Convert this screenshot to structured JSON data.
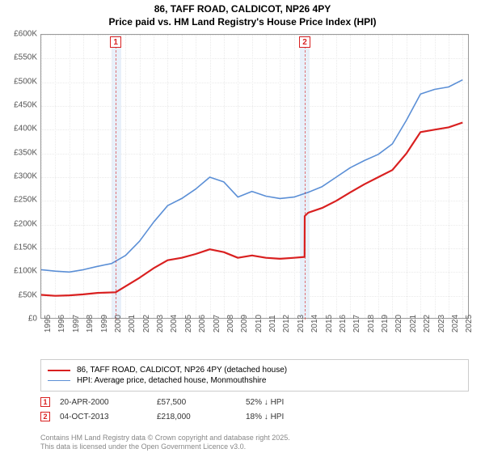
{
  "title_line1": "86, TAFF ROAD, CALDICOT, NP26 4PY",
  "title_line2": "Price paid vs. HM Land Registry's House Price Index (HPI)",
  "chart": {
    "type": "line",
    "xlim": [
      1995,
      2025.5
    ],
    "ylim": [
      0,
      600000
    ],
    "ytick_step": 50000,
    "y_prefix": "£",
    "y_ticks": [
      "£0",
      "£50K",
      "£100K",
      "£150K",
      "£200K",
      "£250K",
      "£300K",
      "£350K",
      "£400K",
      "£450K",
      "£500K",
      "£550K",
      "£600K"
    ],
    "x_ticks": [
      1995,
      1996,
      1997,
      1998,
      1999,
      2000,
      2001,
      2002,
      2003,
      2004,
      2005,
      2006,
      2007,
      2008,
      2009,
      2010,
      2011,
      2012,
      2013,
      2014,
      2015,
      2016,
      2017,
      2018,
      2019,
      2020,
      2021,
      2022,
      2023,
      2024,
      2025
    ],
    "background_color": "#ffffff",
    "grid_color": "#eaeaea",
    "axis_color": "#999999",
    "label_fontsize": 10,
    "highlight_band_color": "#e8f0fa",
    "highlight_bands": [
      {
        "from": 2000.0,
        "to": 2000.7
      },
      {
        "from": 2013.4,
        "to": 2014.1
      }
    ],
    "markers": [
      {
        "id": "1",
        "x": 2000.3,
        "color": "#d92020"
      },
      {
        "id": "2",
        "x": 2013.76,
        "color": "#d92020"
      }
    ],
    "series": [
      {
        "name": "86, TAFF ROAD, CALDICOT, NP26 4PY (detached house)",
        "color": "#d92020",
        "line_width": 2.2,
        "points": [
          [
            1995,
            52000
          ],
          [
            1996,
            50000
          ],
          [
            1997,
            51000
          ],
          [
            1998,
            53000
          ],
          [
            1999,
            56000
          ],
          [
            2000.3,
            57500
          ],
          [
            2001,
            70000
          ],
          [
            2002,
            88000
          ],
          [
            2003,
            108000
          ],
          [
            2004,
            125000
          ],
          [
            2005,
            130000
          ],
          [
            2006,
            138000
          ],
          [
            2007,
            148000
          ],
          [
            2008,
            142000
          ],
          [
            2009,
            130000
          ],
          [
            2010,
            135000
          ],
          [
            2011,
            130000
          ],
          [
            2012,
            128000
          ],
          [
            2013,
            130000
          ],
          [
            2013.75,
            132000
          ],
          [
            2013.76,
            218000
          ],
          [
            2014,
            225000
          ],
          [
            2015,
            235000
          ],
          [
            2016,
            250000
          ],
          [
            2017,
            268000
          ],
          [
            2018,
            285000
          ],
          [
            2019,
            300000
          ],
          [
            2020,
            315000
          ],
          [
            2021,
            350000
          ],
          [
            2022,
            395000
          ],
          [
            2023,
            400000
          ],
          [
            2024,
            405000
          ],
          [
            2025,
            415000
          ]
        ]
      },
      {
        "name": "HPI: Average price, detached house, Monmouthshire",
        "color": "#5b8fd6",
        "line_width": 1.6,
        "points": [
          [
            1995,
            105000
          ],
          [
            1996,
            102000
          ],
          [
            1997,
            100000
          ],
          [
            1998,
            105000
          ],
          [
            1999,
            112000
          ],
          [
            2000,
            118000
          ],
          [
            2001,
            135000
          ],
          [
            2002,
            165000
          ],
          [
            2003,
            205000
          ],
          [
            2004,
            240000
          ],
          [
            2005,
            255000
          ],
          [
            2006,
            275000
          ],
          [
            2007,
            300000
          ],
          [
            2008,
            290000
          ],
          [
            2009,
            258000
          ],
          [
            2010,
            270000
          ],
          [
            2011,
            260000
          ],
          [
            2012,
            255000
          ],
          [
            2013,
            258000
          ],
          [
            2014,
            268000
          ],
          [
            2015,
            280000
          ],
          [
            2016,
            300000
          ],
          [
            2017,
            320000
          ],
          [
            2018,
            335000
          ],
          [
            2019,
            348000
          ],
          [
            2020,
            370000
          ],
          [
            2021,
            420000
          ],
          [
            2022,
            475000
          ],
          [
            2023,
            485000
          ],
          [
            2024,
            490000
          ],
          [
            2025,
            505000
          ]
        ]
      }
    ]
  },
  "legend": {
    "label_fontsize": 10
  },
  "events": [
    {
      "id": "1",
      "date": "20-APR-2000",
      "price": "£57,500",
      "diff": "52% ↓ HPI",
      "color": "#d92020"
    },
    {
      "id": "2",
      "date": "04-OCT-2013",
      "price": "£218,000",
      "diff": "18% ↓ HPI",
      "color": "#d92020"
    }
  ],
  "footer_line1": "Contains HM Land Registry data © Crown copyright and database right 2025.",
  "footer_line2": "This data is licensed under the Open Government Licence v3.0."
}
